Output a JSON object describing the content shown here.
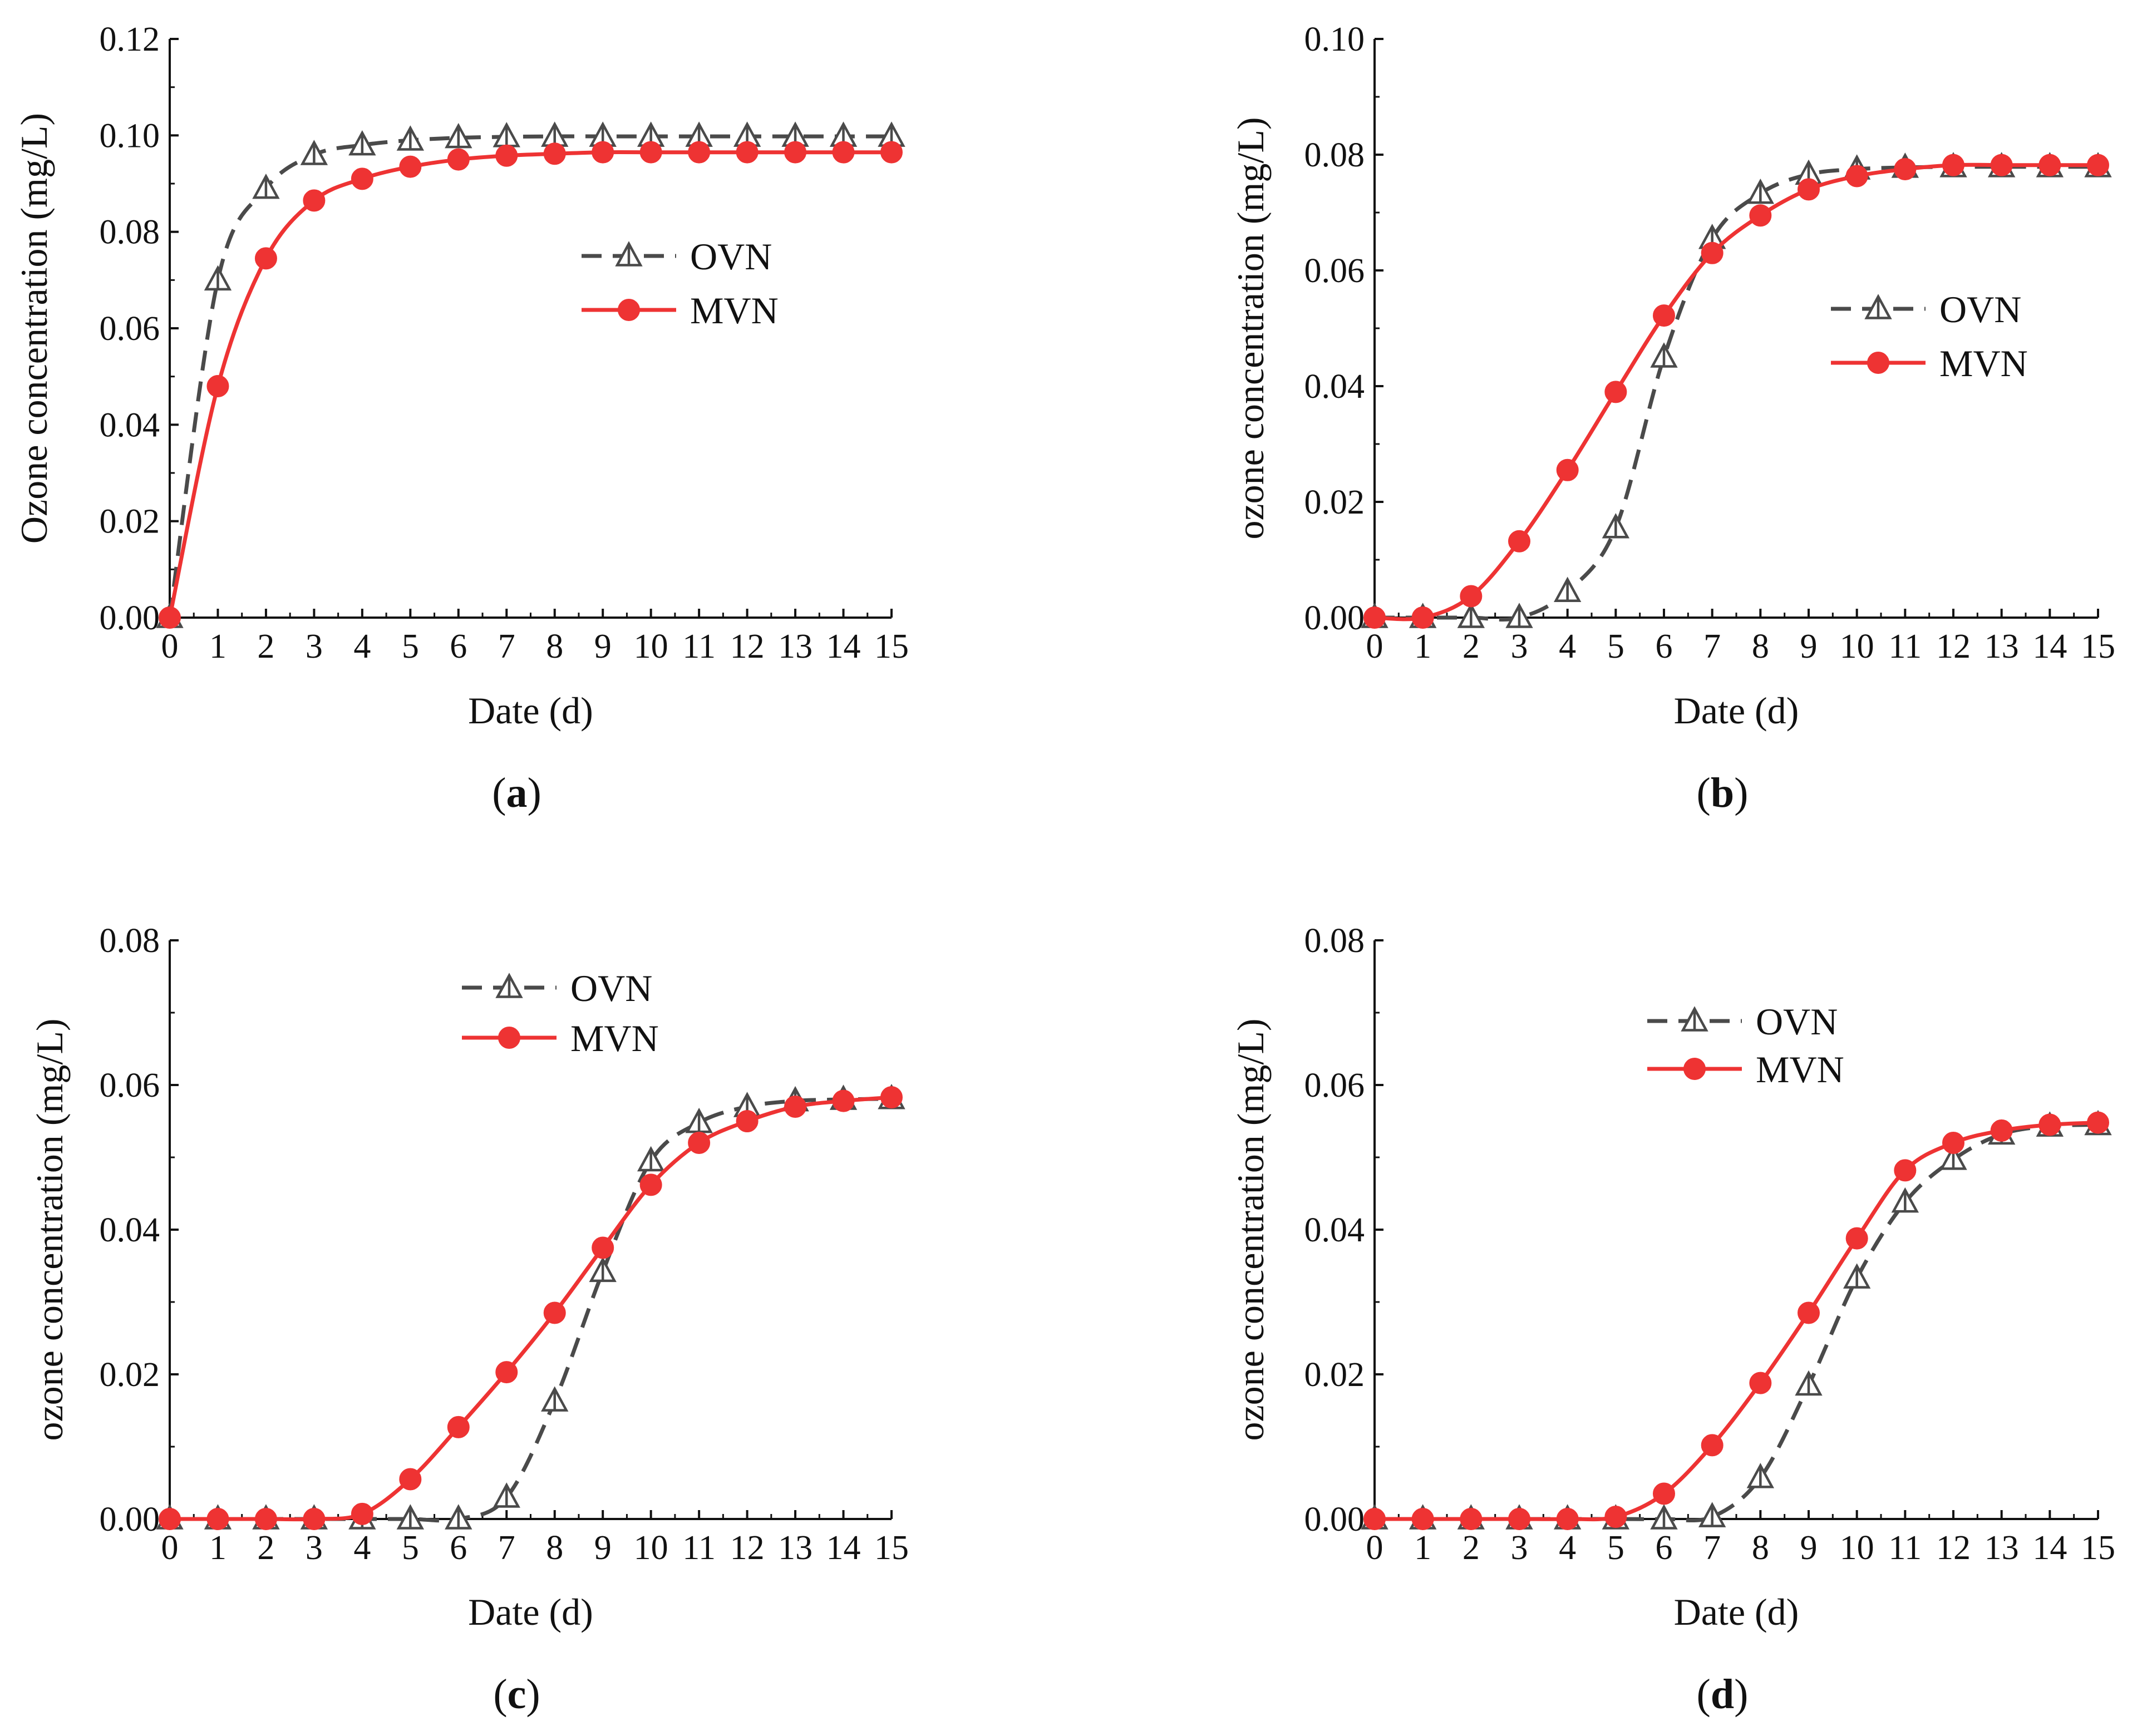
{
  "chart_data": [
    {
      "type": "line",
      "panel": "a",
      "caption_letter": "a",
      "xlabel": "Date (d)",
      "ylabel": "Ozone concentration (mg/L)",
      "xlim": [
        0,
        15
      ],
      "ylim": [
        0,
        0.12
      ],
      "xticks": [
        0,
        1,
        2,
        3,
        4,
        5,
        6,
        7,
        8,
        9,
        10,
        11,
        12,
        13,
        14,
        15
      ],
      "yticks": [
        "0.00",
        "0.02",
        "0.04",
        "0.06",
        "0.08",
        "0.10",
        "0.12"
      ],
      "legend_position": "center-right",
      "x": [
        0,
        1,
        2,
        3,
        4,
        5,
        6,
        7,
        8,
        9,
        10,
        11,
        12,
        13,
        14,
        15
      ],
      "series": [
        {
          "name": "OVN",
          "color": "#4a4a4a",
          "style": "dashed",
          "marker": "triangle-open",
          "values": [
            0.0,
            0.07,
            0.089,
            0.096,
            0.098,
            0.099,
            0.0995,
            0.0997,
            0.0998,
            0.0998,
            0.0998,
            0.0998,
            0.0998,
            0.0998,
            0.0998,
            0.0998
          ]
        },
        {
          "name": "MVN",
          "color": "#ee3333",
          "style": "solid",
          "marker": "circle-filled",
          "values": [
            0.0,
            0.048,
            0.0745,
            0.0865,
            0.091,
            0.0935,
            0.095,
            0.0958,
            0.0962,
            0.0965,
            0.0965,
            0.0965,
            0.0965,
            0.0965,
            0.0965,
            0.0965
          ]
        }
      ]
    },
    {
      "type": "line",
      "panel": "b",
      "caption_letter": "b",
      "xlabel": "Date (d)",
      "ylabel": "ozone concentration (mg/L)",
      "xlim": [
        0,
        15
      ],
      "ylim": [
        0,
        0.1
      ],
      "xticks": [
        0,
        1,
        2,
        3,
        4,
        5,
        6,
        7,
        8,
        9,
        10,
        11,
        12,
        13,
        14,
        15
      ],
      "yticks": [
        "0.00",
        "0.02",
        "0.04",
        "0.06",
        "0.08",
        "0.10"
      ],
      "legend_position": "center-right",
      "x": [
        0,
        1,
        2,
        3,
        4,
        5,
        6,
        7,
        8,
        9,
        10,
        11,
        12,
        13,
        14,
        15
      ],
      "series": [
        {
          "name": "OVN",
          "color": "#4a4a4a",
          "style": "dashed",
          "marker": "triangle-open",
          "values": [
            0.0,
            0.0,
            0.0,
            0.0,
            0.0045,
            0.0155,
            0.045,
            0.0655,
            0.0733,
            0.0766,
            0.0775,
            0.0778,
            0.0779,
            0.0779,
            0.0779,
            0.0779
          ]
        },
        {
          "name": "MVN",
          "color": "#ee3333",
          "style": "solid",
          "marker": "circle-filled",
          "values": [
            0.0,
            0.0,
            0.0037,
            0.0132,
            0.0255,
            0.039,
            0.0522,
            0.063,
            0.0695,
            0.074,
            0.0763,
            0.0775,
            0.0782,
            0.0782,
            0.0782,
            0.0782
          ]
        }
      ]
    },
    {
      "type": "line",
      "panel": "c",
      "caption_letter": "c",
      "xlabel": "Date (d)",
      "ylabel": "ozone concentration (mg/L)",
      "xlim": [
        0,
        15
      ],
      "ylim": [
        0,
        0.08
      ],
      "xticks": [
        0,
        1,
        2,
        3,
        4,
        5,
        6,
        7,
        8,
        9,
        10,
        11,
        12,
        13,
        14,
        15
      ],
      "yticks": [
        "0.00",
        "0.02",
        "0.04",
        "0.06",
        "0.08"
      ],
      "legend_position": "top-center",
      "x": [
        0,
        1,
        2,
        3,
        4,
        5,
        6,
        7,
        8,
        9,
        10,
        11,
        12,
        13,
        14,
        15
      ],
      "series": [
        {
          "name": "OVN",
          "color": "#4a4a4a",
          "style": "dashed",
          "marker": "triangle-open",
          "values": [
            0.0,
            0.0,
            0.0,
            0.0,
            0.0,
            0.0,
            0.0,
            0.003,
            0.0163,
            0.0342,
            0.0495,
            0.0548,
            0.057,
            0.0578,
            0.058,
            0.0581
          ]
        },
        {
          "name": "MVN",
          "color": "#ee3333",
          "style": "solid",
          "marker": "circle-filled",
          "values": [
            0.0,
            0.0,
            0.0,
            0.0,
            0.0007,
            0.0055,
            0.0127,
            0.0203,
            0.0285,
            0.0375,
            0.0462,
            0.052,
            0.055,
            0.057,
            0.0578,
            0.0583
          ]
        }
      ]
    },
    {
      "type": "line",
      "panel": "d",
      "caption_letter": "d",
      "xlabel": "Date (d)",
      "ylabel": "ozone concentration (mg/L)",
      "xlim": [
        0,
        15
      ],
      "ylim": [
        0,
        0.08
      ],
      "xticks": [
        0,
        1,
        2,
        3,
        4,
        5,
        6,
        7,
        8,
        9,
        10,
        11,
        12,
        13,
        14,
        15
      ],
      "yticks": [
        "0.00",
        "0.02",
        "0.04",
        "0.06",
        "0.08"
      ],
      "legend_position": "top-center",
      "x": [
        0,
        1,
        2,
        3,
        4,
        5,
        6,
        7,
        8,
        9,
        10,
        11,
        12,
        13,
        14,
        15
      ],
      "series": [
        {
          "name": "OVN",
          "color": "#4a4a4a",
          "style": "dashed",
          "marker": "triangle-open",
          "values": [
            0.0,
            0.0,
            0.0,
            0.0,
            0.0,
            0.0,
            0.0,
            0.0003,
            0.0057,
            0.0185,
            0.0333,
            0.0438,
            0.0497,
            0.0532,
            0.0543,
            0.0545
          ]
        },
        {
          "name": "MVN",
          "color": "#ee3333",
          "style": "solid",
          "marker": "circle-filled",
          "values": [
            0.0,
            0.0,
            0.0,
            0.0,
            0.0,
            0.0003,
            0.0035,
            0.0102,
            0.0188,
            0.0285,
            0.0388,
            0.0482,
            0.052,
            0.0537,
            0.0545,
            0.0548
          ]
        }
      ]
    }
  ]
}
